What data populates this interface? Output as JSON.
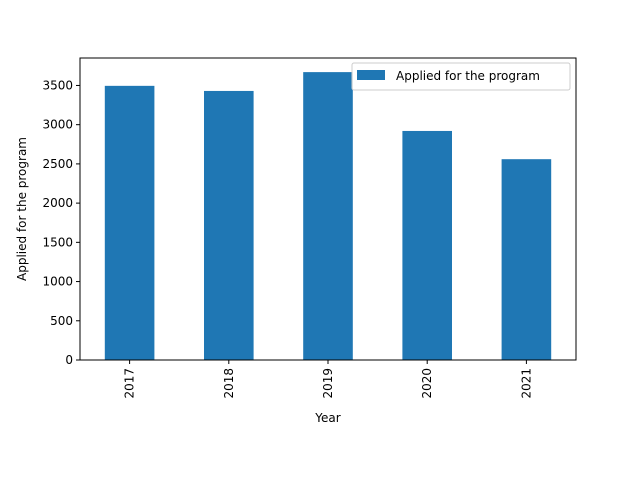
{
  "chart_data": {
    "type": "bar",
    "title": "",
    "xlabel": "Year",
    "ylabel": "Applied for the program",
    "categories": [
      "2017",
      "2018",
      "2019",
      "2020",
      "2021"
    ],
    "series": [
      {
        "name": "Applied for the program",
        "values": [
          3495,
          3430,
          3670,
          2920,
          2560
        ],
        "color": "#1f77b4"
      }
    ],
    "ylim": [
      0,
      3850
    ],
    "yticks": [
      0,
      500,
      1000,
      1500,
      2000,
      2500,
      3000,
      3500
    ],
    "grid": false,
    "legend_position": "top-right",
    "xtick_rotation": "vertical"
  }
}
